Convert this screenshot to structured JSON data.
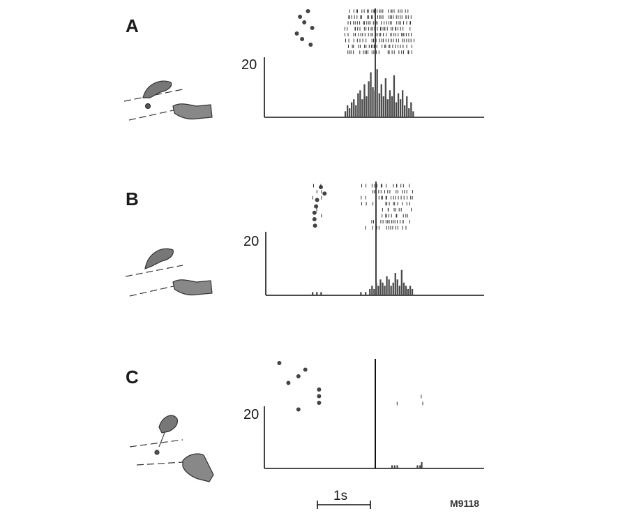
{
  "panels": [
    {
      "label": "A",
      "ylabel": "20",
      "chart_data": {
        "type": "bar",
        "title": "",
        "xlabel": "",
        "ylabel": "",
        "ylim": [
          0,
          20
        ],
        "grid": false,
        "align_at_s": 0.0,
        "bin_width_s": 0.02,
        "bin_start_s": [
          -0.58,
          -0.54,
          -0.5,
          -0.46,
          -0.42,
          -0.38,
          -0.34,
          -0.3,
          -0.26,
          -0.22,
          -0.18,
          -0.14,
          -0.1,
          -0.06,
          -0.02,
          0.02,
          0.06,
          0.1,
          0.14,
          0.18,
          0.22,
          0.26,
          0.3,
          0.34,
          0.38,
          0.42,
          0.46,
          0.5,
          0.54,
          0.58,
          0.62,
          0.66,
          0.7
        ],
        "values": [
          2,
          4,
          3,
          5,
          6,
          4,
          8,
          9,
          6,
          11,
          7,
          12,
          15,
          10,
          9,
          16,
          8,
          11,
          7,
          13,
          6,
          9,
          7,
          14,
          5,
          8,
          6,
          9,
          4,
          7,
          3,
          5,
          2
        ],
        "task_events_s": [
          -1.27,
          -1.42,
          -1.34,
          -1.19,
          -1.48,
          -1.38,
          -1.22
        ],
        "raster_trials": 8
      }
    },
    {
      "label": "B",
      "ylabel": "20",
      "chart_data": {
        "type": "bar",
        "title": "",
        "xlabel": "",
        "ylabel": "",
        "ylim": [
          0,
          20
        ],
        "grid": false,
        "align_at_s": 0.0,
        "bin_width_s": 0.02,
        "bin_start_s": [
          -1.21,
          -1.13,
          -1.05,
          -0.3,
          -0.21,
          -0.13,
          -0.09,
          -0.05,
          -0.01,
          0.03,
          0.07,
          0.11,
          0.15,
          0.19,
          0.23,
          0.27,
          0.31,
          0.35,
          0.39,
          0.43,
          0.47,
          0.51,
          0.55,
          0.59,
          0.63,
          0.67
        ],
        "values": [
          1,
          1,
          1,
          1,
          1,
          2,
          3,
          2,
          4,
          3,
          5,
          4,
          3,
          6,
          5,
          3,
          4,
          7,
          5,
          3,
          8,
          4,
          3,
          2,
          3,
          2
        ],
        "task_events_s": [
          -1.04,
          -0.97,
          -1.11,
          -1.13,
          -1.16,
          -1.16,
          -1.15
        ],
        "raster_trials": 8
      }
    },
    {
      "label": "C",
      "ylabel": "20",
      "chart_data": {
        "type": "bar",
        "title": "",
        "xlabel": "",
        "ylabel": "",
        "ylim": [
          0,
          20
        ],
        "grid": false,
        "align_at_s": 0.0,
        "bin_width_s": 0.02,
        "bin_start_s": [
          0.3,
          0.35,
          0.4,
          0.78,
          0.83,
          0.86
        ],
        "values": [
          1,
          1,
          1,
          1,
          1,
          2
        ],
        "task_events_s": [
          -1.81,
          -1.32,
          -1.45,
          -1.64,
          -1.06,
          -1.06,
          -1.06,
          -1.45
        ],
        "raster_trials": 2
      }
    }
  ],
  "scale_bar": {
    "label": "1s"
  },
  "figure_id": "M9118"
}
